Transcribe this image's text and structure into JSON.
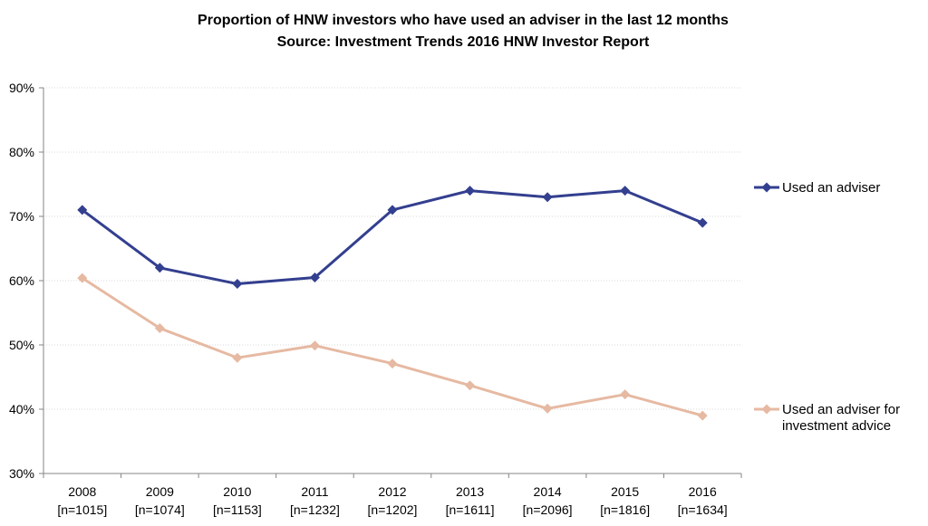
{
  "chart_data": {
    "type": "line",
    "title": "Proportion of HNW investors who have used an adviser in the last 12 months",
    "subtitle": "Source: Investment Trends 2016 HNW Investor Report",
    "categories": [
      "2008",
      "2009",
      "2010",
      "2011",
      "2012",
      "2013",
      "2014",
      "2015",
      "2016"
    ],
    "category_sublabels": [
      "[n=1015]",
      "[n=1074]",
      "[n=1153]",
      "[n=1232]",
      "[n=1202]",
      "[n=1611]",
      "[n=2096]",
      "[n=1816]",
      "[n=1634]"
    ],
    "y_ticks": [
      "30%",
      "40%",
      "50%",
      "60%",
      "70%",
      "80%",
      "90%"
    ],
    "ylim": [
      30,
      90
    ],
    "grid": "horizontal",
    "legend_position": "right",
    "series": [
      {
        "name": "Used an adviser",
        "color": "#333f8f",
        "values": [
          71,
          62,
          59.5,
          60.5,
          71,
          74,
          73,
          74,
          69
        ]
      },
      {
        "name": "Used an adviser for investment advice",
        "name_lines": [
          "Used an adviser for",
          "investment advice"
        ],
        "color": "#e6b9a2",
        "values": [
          60.4,
          52.6,
          48,
          49.9,
          47.1,
          43.7,
          40.1,
          42.3,
          39
        ]
      }
    ],
    "xlabel": "",
    "ylabel": ""
  }
}
